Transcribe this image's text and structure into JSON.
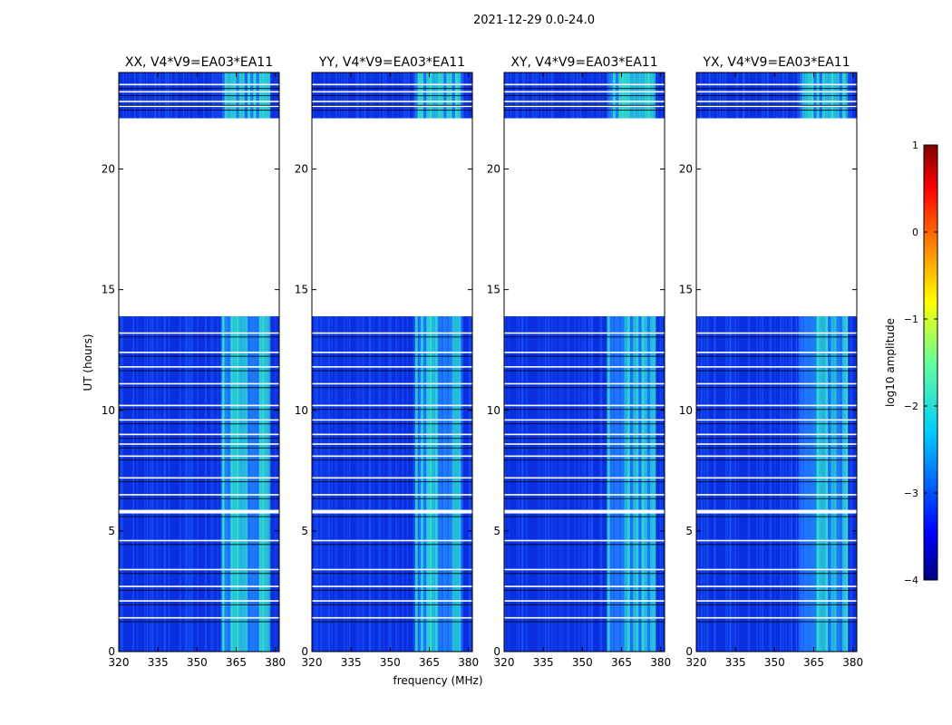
{
  "figure_title": "2021-12-29 0.0-24.0",
  "colors": {
    "noise_dark": "#0a2fe0",
    "noise_mid": "#1e5dff",
    "band_bright": "#33e6c8",
    "band_mid": "#1fa6f0",
    "flag": "#ffffff",
    "black_line": "#000000"
  },
  "chart_data": [
    {
      "type": "heatmap",
      "title": "XX, V4*V9=EA03*EA11",
      "xlabel": "frequency (MHz)",
      "ylabel": "UT (hours)",
      "xlim": [
        320,
        381.5
      ],
      "ylim": [
        0,
        24
      ],
      "xticks": [
        "320",
        "335",
        "350",
        "365",
        "380"
      ],
      "yticks": [
        "0",
        "5",
        "10",
        "15",
        "20"
      ],
      "rfi_band_mhz": [
        359.5,
        377.5
      ],
      "flagged_gap_hours": [
        13.9,
        22.1
      ],
      "flag_rows_hours": [
        1.4,
        2.1,
        2.7,
        3.4,
        4.6,
        5.8,
        6.5,
        7.2,
        8.1,
        8.6,
        9.0,
        9.6,
        10.2,
        11.1,
        11.8,
        12.4,
        13.2,
        22.6,
        22.8,
        23.2,
        23.5
      ]
    },
    {
      "type": "heatmap",
      "title": "YY, V4*V9=EA03*EA11",
      "xlabel": "",
      "ylabel": "",
      "xlim": [
        320,
        381.5
      ],
      "ylim": [
        0,
        24
      ],
      "xticks": [
        "320",
        "335",
        "350",
        "365",
        "380"
      ],
      "yticks": [
        "0",
        "5",
        "10",
        "15",
        "20"
      ],
      "rfi_band_mhz": [
        359.5,
        377.5
      ],
      "flagged_gap_hours": [
        13.9,
        22.1
      ],
      "flag_rows_hours": [
        1.4,
        2.1,
        2.7,
        3.4,
        4.6,
        5.8,
        6.5,
        7.2,
        8.1,
        8.6,
        9.0,
        9.6,
        10.2,
        11.1,
        11.8,
        12.4,
        13.2,
        22.6,
        22.8,
        23.2,
        23.5
      ]
    },
    {
      "type": "heatmap",
      "title": "XY, V4*V9=EA03*EA11",
      "xlabel": "",
      "ylabel": "",
      "xlim": [
        320,
        381.5
      ],
      "ylim": [
        0,
        24
      ],
      "xticks": [
        "320",
        "335",
        "350",
        "365",
        "380"
      ],
      "yticks": [
        "0",
        "5",
        "10",
        "15",
        "20"
      ],
      "rfi_band_mhz": [
        359.5,
        377.5
      ],
      "flagged_gap_hours": [
        13.9,
        22.1
      ],
      "flag_rows_hours": [
        1.4,
        2.1,
        2.7,
        3.4,
        4.6,
        5.8,
        6.5,
        7.2,
        8.1,
        8.6,
        9.0,
        9.6,
        10.2,
        11.1,
        11.8,
        12.4,
        13.2,
        22.6,
        22.8,
        23.2,
        23.5
      ]
    },
    {
      "type": "heatmap",
      "title": "YX, V4*V9=EA03*EA11",
      "xlabel": "",
      "ylabel": "",
      "xlim": [
        320,
        381.5
      ],
      "ylim": [
        0,
        24
      ],
      "xticks": [
        "320",
        "335",
        "350",
        "365",
        "380"
      ],
      "yticks": [
        "0",
        "5",
        "10",
        "15",
        "20"
      ],
      "rfi_band_mhz": [
        359.5,
        377.5
      ],
      "flagged_gap_hours": [
        13.9,
        22.1
      ],
      "flag_rows_hours": [
        1.4,
        2.1,
        2.7,
        3.4,
        4.6,
        5.8,
        6.5,
        7.2,
        8.1,
        8.6,
        9.0,
        9.6,
        10.2,
        11.1,
        11.8,
        12.4,
        13.2,
        22.6,
        22.8,
        23.2,
        23.5
      ]
    }
  ],
  "colorbar": {
    "label": "log10 amplitude",
    "range": [
      -4,
      1
    ],
    "ticks": [
      "1",
      "0",
      "−1",
      "−2",
      "−3",
      "−4"
    ]
  }
}
